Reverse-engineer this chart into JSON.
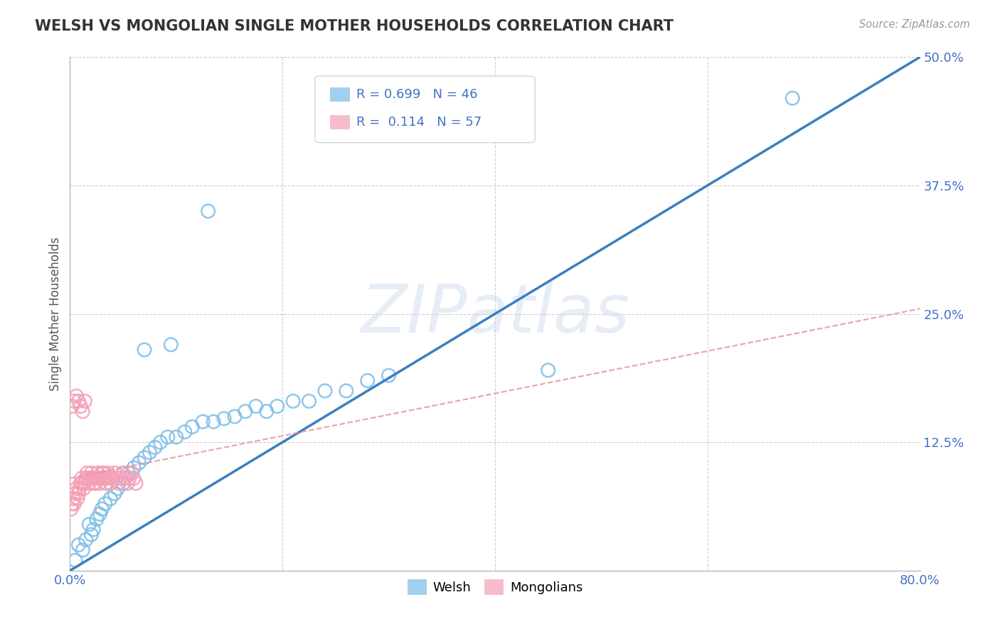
{
  "title": "WELSH VS MONGOLIAN SINGLE MOTHER HOUSEHOLDS CORRELATION CHART",
  "source": "Source: ZipAtlas.com",
  "ylabel_label": "Single Mother Households",
  "xlim": [
    0.0,
    0.8
  ],
  "ylim": [
    0.0,
    0.5
  ],
  "xticks": [
    0.0,
    0.2,
    0.4,
    0.6,
    0.8
  ],
  "xtick_labels": [
    "0.0%",
    "",
    "",
    "",
    "80.0%"
  ],
  "yticks": [
    0.0,
    0.125,
    0.25,
    0.375,
    0.5
  ],
  "ytick_labels": [
    "",
    "12.5%",
    "25.0%",
    "37.5%",
    "50.0%"
  ],
  "welsh_R": 0.699,
  "welsh_N": 46,
  "mongolian_R": 0.114,
  "mongolian_N": 57,
  "welsh_color": "#7dbde8",
  "mongolian_color": "#f4a0b5",
  "welsh_line_color": "#3a7fc1",
  "mongolian_line_color": "#e8919f",
  "watermark_text": "ZIPatlas",
  "welsh_line_x0": 0.0,
  "welsh_line_y0": 0.0,
  "welsh_line_x1": 0.8,
  "welsh_line_y1": 0.5,
  "mong_line_x0": 0.0,
  "mong_line_y0": 0.09,
  "mong_line_x1": 0.8,
  "mong_line_y1": 0.255,
  "welsh_x": [
    0.005,
    0.008,
    0.012,
    0.015,
    0.018,
    0.02,
    0.022,
    0.025,
    0.028,
    0.03,
    0.033,
    0.038,
    0.042,
    0.045,
    0.05,
    0.052,
    0.055,
    0.06,
    0.065,
    0.07,
    0.075,
    0.08,
    0.085,
    0.092,
    0.1,
    0.108,
    0.115,
    0.125,
    0.135,
    0.145,
    0.155,
    0.165,
    0.175,
    0.185,
    0.195,
    0.21,
    0.225,
    0.24,
    0.26,
    0.28,
    0.3,
    0.45,
    0.68,
    0.07,
    0.095,
    0.13
  ],
  "welsh_y": [
    0.01,
    0.025,
    0.02,
    0.03,
    0.045,
    0.035,
    0.04,
    0.05,
    0.055,
    0.06,
    0.065,
    0.07,
    0.075,
    0.08,
    0.085,
    0.09,
    0.095,
    0.1,
    0.105,
    0.11,
    0.115,
    0.12,
    0.125,
    0.13,
    0.13,
    0.135,
    0.14,
    0.145,
    0.145,
    0.148,
    0.15,
    0.155,
    0.16,
    0.155,
    0.16,
    0.165,
    0.165,
    0.175,
    0.175,
    0.185,
    0.19,
    0.195,
    0.46,
    0.215,
    0.22,
    0.35
  ],
  "mongolian_x": [
    0.001,
    0.002,
    0.003,
    0.004,
    0.005,
    0.006,
    0.007,
    0.008,
    0.009,
    0.01,
    0.011,
    0.012,
    0.013,
    0.014,
    0.015,
    0.016,
    0.017,
    0.018,
    0.019,
    0.02,
    0.021,
    0.022,
    0.023,
    0.024,
    0.025,
    0.026,
    0.027,
    0.028,
    0.029,
    0.03,
    0.031,
    0.032,
    0.033,
    0.034,
    0.035,
    0.036,
    0.037,
    0.038,
    0.04,
    0.042,
    0.044,
    0.046,
    0.048,
    0.05,
    0.052,
    0.054,
    0.056,
    0.058,
    0.06,
    0.062,
    0.002,
    0.004,
    0.006,
    0.008,
    0.01,
    0.012,
    0.014
  ],
  "mongolian_y": [
    0.06,
    0.065,
    0.07,
    0.065,
    0.075,
    0.08,
    0.07,
    0.075,
    0.08,
    0.085,
    0.09,
    0.085,
    0.08,
    0.085,
    0.09,
    0.095,
    0.09,
    0.085,
    0.09,
    0.095,
    0.09,
    0.085,
    0.09,
    0.085,
    0.09,
    0.095,
    0.09,
    0.085,
    0.09,
    0.095,
    0.09,
    0.095,
    0.09,
    0.085,
    0.09,
    0.095,
    0.09,
    0.085,
    0.09,
    0.095,
    0.09,
    0.085,
    0.09,
    0.095,
    0.09,
    0.085,
    0.09,
    0.095,
    0.09,
    0.085,
    0.16,
    0.165,
    0.17,
    0.165,
    0.16,
    0.155,
    0.165
  ]
}
